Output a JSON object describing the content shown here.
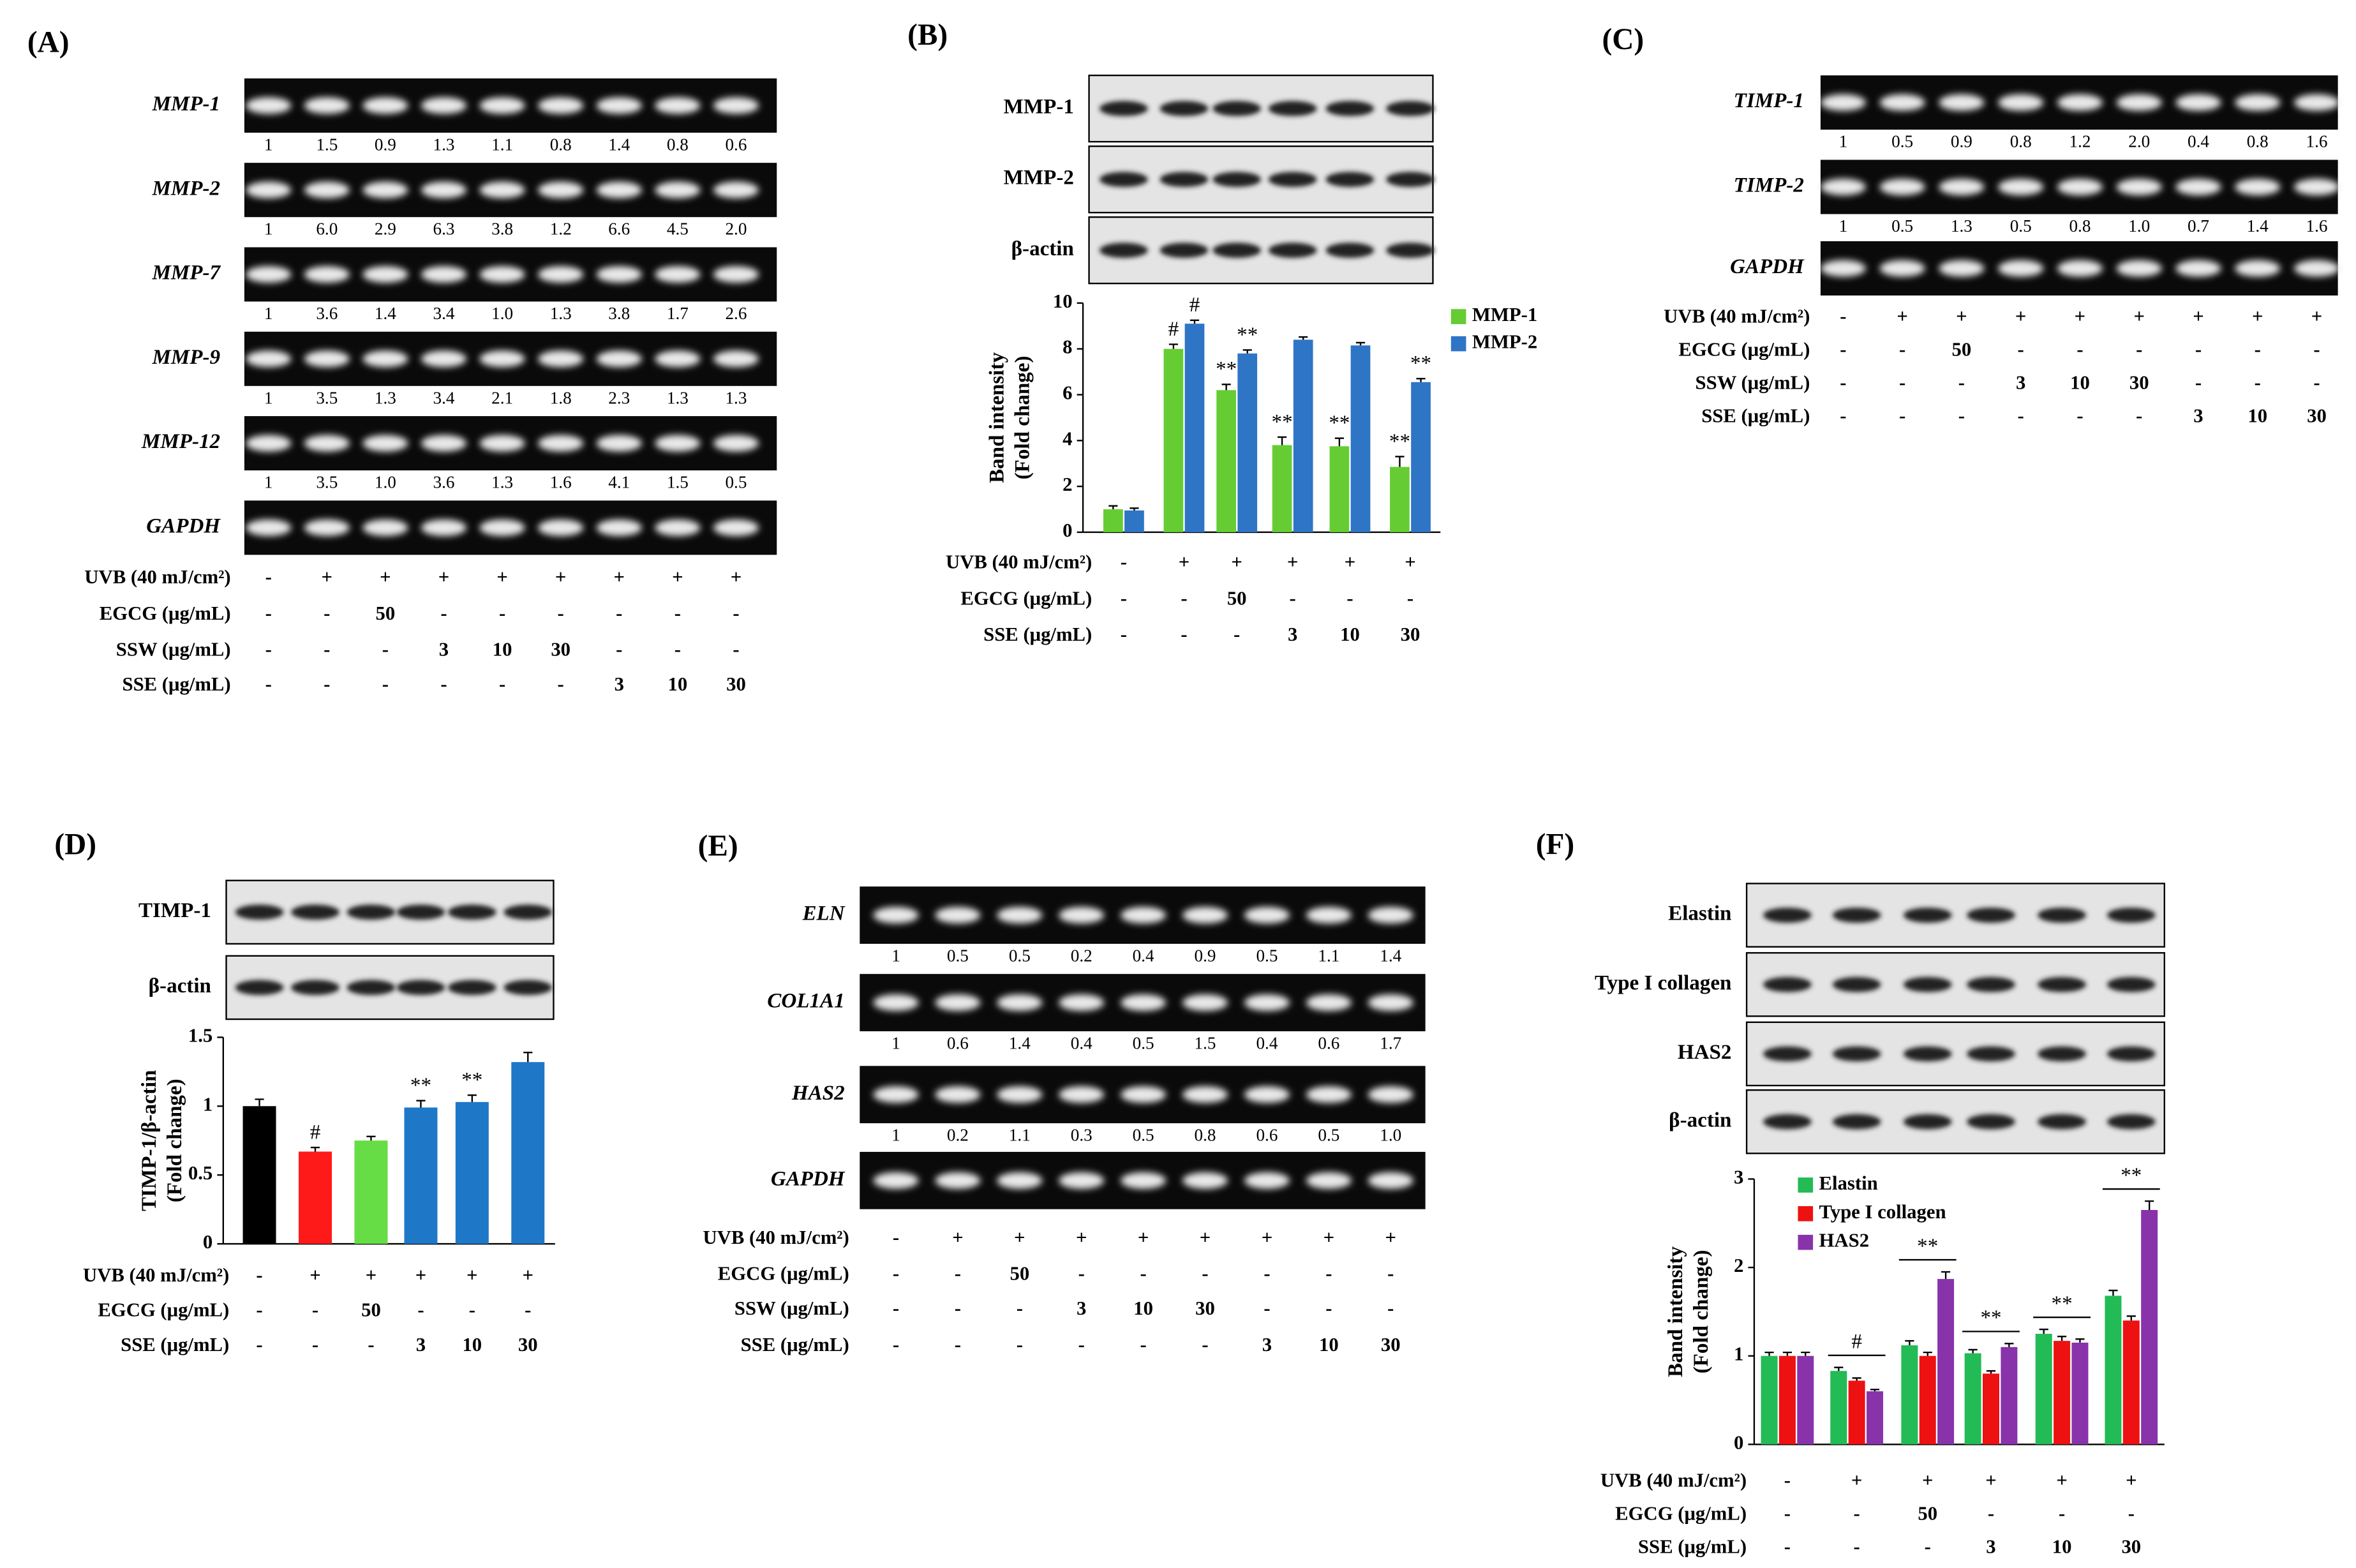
{
  "gels": [
    {
      "label": "(A)",
      "rows": [
        {
          "name": "MMP-1",
          "values": [
            "1",
            "1.5",
            "0.9",
            "1.3",
            "1.1",
            "0.8",
            "1.4",
            "0.8",
            "0.6"
          ]
        },
        {
          "name": "MMP-2",
          "values": [
            "1",
            "6.0",
            "2.9",
            "6.3",
            "3.8",
            "1.2",
            "6.6",
            "4.5",
            "2.0"
          ]
        },
        {
          "name": "MMP-7",
          "values": [
            "1",
            "3.6",
            "1.4",
            "3.4",
            "1.0",
            "1.3",
            "3.8",
            "1.7",
            "2.6"
          ]
        },
        {
          "name": "MMP-9",
          "values": [
            "1",
            "3.5",
            "1.3",
            "3.4",
            "2.1",
            "1.8",
            "2.3",
            "1.3",
            "1.3"
          ]
        },
        {
          "name": "MMP-12",
          "values": [
            "1",
            "3.5",
            "1.0",
            "3.6",
            "1.3",
            "1.6",
            "4.1",
            "1.5",
            "0.5"
          ]
        },
        {
          "name": "GAPDH"
        }
      ],
      "treatments": [
        {
          "name": "UVB (40 mJ/cm²)",
          "marks": [
            "-",
            "+",
            "+",
            "+",
            "+",
            "+",
            "+",
            "+",
            "+"
          ]
        },
        {
          "name": "EGCG (μg/mL)",
          "marks": [
            "-",
            "-",
            "50",
            "-",
            "-",
            "-",
            "-",
            "-",
            "-"
          ]
        },
        {
          "name": "SSW (μg/mL)",
          "marks": [
            "-",
            "-",
            "-",
            "3",
            "10",
            "30",
            "-",
            "-",
            "-"
          ]
        },
        {
          "name": "SSE (μg/mL)",
          "marks": [
            "-",
            "-",
            "-",
            "-",
            "-",
            "-",
            "3",
            "10",
            "30"
          ]
        }
      ]
    },
    {
      "label": "(C)",
      "rows": [
        {
          "name": "TIMP-1",
          "values": [
            "1",
            "0.5",
            "0.9",
            "0.8",
            "1.2",
            "2.0",
            "0.4",
            "0.8",
            "1.6"
          ]
        },
        {
          "name": "TIMP-2",
          "values": [
            "1",
            "0.5",
            "1.3",
            "0.5",
            "0.8",
            "1.0",
            "0.7",
            "1.4",
            "1.6"
          ]
        },
        {
          "name": "GAPDH"
        }
      ],
      "treatments": [
        {
          "name": "UVB (40 mJ/cm²)",
          "marks": [
            "-",
            "+",
            "+",
            "+",
            "+",
            "+",
            "+",
            "+",
            "+"
          ]
        },
        {
          "name": "EGCG (μg/mL)",
          "marks": [
            "-",
            "-",
            "50",
            "-",
            "-",
            "-",
            "-",
            "-",
            "-"
          ]
        },
        {
          "name": "SSW (μg/mL)",
          "marks": [
            "-",
            "-",
            "-",
            "3",
            "10",
            "30",
            "-",
            "-",
            "-"
          ]
        },
        {
          "name": "SSE (μg/mL)",
          "marks": [
            "-",
            "-",
            "-",
            "-",
            "-",
            "-",
            "3",
            "10",
            "30"
          ]
        }
      ]
    },
    {
      "label": "(E)",
      "rows": [
        {
          "name": "ELN",
          "values": [
            "1",
            "0.5",
            "0.5",
            "0.2",
            "0.4",
            "0.9",
            "0.5",
            "1.1",
            "1.4"
          ]
        },
        {
          "name": "COL1A1",
          "values": [
            "1",
            "0.6",
            "1.4",
            "0.4",
            "0.5",
            "1.5",
            "0.4",
            "0.6",
            "1.7"
          ]
        },
        {
          "name": "HAS2",
          "values": [
            "1",
            "0.2",
            "1.1",
            "0.3",
            "0.5",
            "0.8",
            "0.6",
            "0.5",
            "1.0"
          ]
        },
        {
          "name": "GAPDH"
        }
      ],
      "treatments": [
        {
          "name": "UVB (40 mJ/cm²)",
          "marks": [
            "-",
            "+",
            "+",
            "+",
            "+",
            "+",
            "+",
            "+",
            "+"
          ]
        },
        {
          "name": "EGCG (μg/mL)",
          "marks": [
            "-",
            "-",
            "50",
            "-",
            "-",
            "-",
            "-",
            "-",
            "-"
          ]
        },
        {
          "name": "SSW (μg/mL)",
          "marks": [
            "-",
            "-",
            "-",
            "3",
            "10",
            "30",
            "-",
            "-",
            "-"
          ]
        },
        {
          "name": "SSE (μg/mL)",
          "marks": [
            "-",
            "-",
            "-",
            "-",
            "-",
            "-",
            "3",
            "10",
            "30"
          ]
        }
      ]
    }
  ],
  "blots": [
    {
      "label": "(B)",
      "rows": [
        "MMP-1",
        "MMP-2",
        "β-actin"
      ],
      "treatments": [
        {
          "name": "UVB (40 mJ/cm²)",
          "marks": [
            "-",
            "+",
            "+",
            "+",
            "+",
            "+"
          ]
        },
        {
          "name": "EGCG (μg/mL)",
          "marks": [
            "-",
            "-",
            "50",
            "-",
            "-",
            "-"
          ]
        },
        {
          "name": "SSE (μg/mL)",
          "marks": [
            "-",
            "-",
            "-",
            "3",
            "10",
            "30"
          ]
        }
      ]
    },
    {
      "label": "(D)",
      "rows": [
        "TIMP-1",
        "β-actin"
      ],
      "treatments": [
        {
          "name": "UVB (40 mJ/cm²)",
          "marks": [
            "-",
            "+",
            "+",
            "+",
            "+",
            "+"
          ]
        },
        {
          "name": "EGCG (μg/mL)",
          "marks": [
            "-",
            "-",
            "50",
            "-",
            "-",
            "-"
          ]
        },
        {
          "name": "SSE (μg/mL)",
          "marks": [
            "-",
            "-",
            "-",
            "3",
            "10",
            "30"
          ]
        }
      ]
    },
    {
      "label": "(F)",
      "rows": [
        "Elastin",
        "Type I collagen",
        "HAS2",
        "β-actin"
      ],
      "treatments": [
        {
          "name": "UVB (40 mJ/cm²)",
          "marks": [
            "-",
            "+",
            "+",
            "+",
            "+",
            "+"
          ]
        },
        {
          "name": "EGCG (μg/mL)",
          "marks": [
            "-",
            "-",
            "50",
            "-",
            "-",
            "-"
          ]
        },
        {
          "name": "SSE (μg/mL)",
          "marks": [
            "-",
            "-",
            "-",
            "3",
            "10",
            "30"
          ]
        }
      ]
    }
  ],
  "chart_data": [
    {
      "type": "bar",
      "ylabel": [
        "Band intensity",
        "(Fold change)"
      ],
      "ylim": [
        0,
        10
      ],
      "yticks": [
        0,
        2,
        4,
        6,
        8,
        10
      ],
      "legend": "right",
      "series": [
        {
          "name": "MMP-1",
          "color": "#66cc33",
          "values": [
            1.0,
            8.0,
            6.2,
            3.8,
            3.75,
            2.85
          ],
          "errors": [
            0.15,
            0.2,
            0.25,
            0.35,
            0.35,
            0.45
          ]
        },
        {
          "name": "MMP-2",
          "color": "#2e75c6",
          "values": [
            0.95,
            9.1,
            7.8,
            8.4,
            8.15,
            6.55
          ],
          "errors": [
            0.1,
            0.15,
            0.15,
            0.12,
            0.12,
            0.15
          ]
        }
      ],
      "annotations": [
        {
          "text": "#",
          "series": 0,
          "index": 1
        },
        {
          "text": "#",
          "series": 1,
          "index": 1
        },
        {
          "text": "**",
          "series": 0,
          "index": 2
        },
        {
          "text": "**",
          "series": 1,
          "index": 2
        },
        {
          "text": "**",
          "series": 0,
          "index": 3
        },
        {
          "text": "**",
          "series": 0,
          "index": 4
        },
        {
          "text": "**",
          "series": 0,
          "index": 5
        },
        {
          "text": "**",
          "series": 1,
          "index": 5
        }
      ]
    },
    {
      "type": "bar",
      "ylabel": [
        "TIMP-1/β-actin",
        "(Fold change)"
      ],
      "ylim": [
        0,
        1.5
      ],
      "yticks": [
        0,
        0.5,
        1,
        1.5
      ],
      "values": [
        1.0,
        0.67,
        0.75,
        0.99,
        1.03,
        1.32
      ],
      "errors": [
        0.05,
        0.03,
        0.03,
        0.05,
        0.05,
        0.07
      ],
      "colors": [
        "#000000",
        "#ff1a1a",
        "#66dd44",
        "#1f77c8",
        "#1f77c8",
        "#1f77c8"
      ],
      "annotations": [
        {
          "text": "#",
          "index": 1
        },
        {
          "text": "**",
          "index": 3
        },
        {
          "text": "**",
          "index": 4
        }
      ]
    },
    {
      "type": "bar",
      "ylabel": [
        "Band intensity",
        "(Fold change)"
      ],
      "ylim": [
        0,
        3
      ],
      "yticks": [
        0,
        1,
        2,
        3
      ],
      "legend": "upper left",
      "series": [
        {
          "name": "Elastin",
          "color": "#22bb55",
          "values": [
            1.0,
            0.83,
            1.12,
            1.03,
            1.25,
            1.68
          ],
          "errors": [
            0.04,
            0.04,
            0.05,
            0.04,
            0.05,
            0.06
          ]
        },
        {
          "name": "Type I collagen",
          "color": "#ee1111",
          "values": [
            1.0,
            0.72,
            1.0,
            0.8,
            1.17,
            1.4
          ],
          "errors": [
            0.04,
            0.03,
            0.04,
            0.03,
            0.05,
            0.05
          ]
        },
        {
          "name": "HAS2",
          "color": "#8833aa",
          "values": [
            1.0,
            0.6,
            1.87,
            1.1,
            1.15,
            2.65
          ],
          "errors": [
            0.04,
            0.02,
            0.08,
            0.04,
            0.04,
            0.1
          ]
        }
      ],
      "annotations": [
        {
          "text": "#",
          "index": 1,
          "bracket": true
        },
        {
          "text": "**",
          "index": 2,
          "bracket": true
        },
        {
          "text": "**",
          "index": 3,
          "bracket": true
        },
        {
          "text": "**",
          "index": 4,
          "bracket": true
        },
        {
          "text": "**",
          "index": 5,
          "bracket": true
        }
      ]
    }
  ]
}
